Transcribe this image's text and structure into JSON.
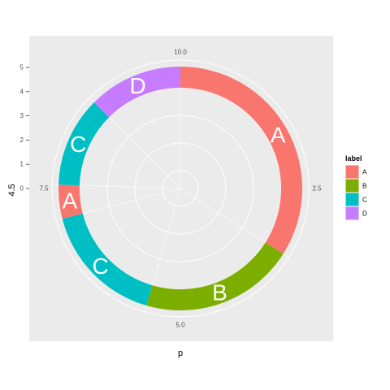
{
  "chart_data": {
    "type": "pie",
    "coord": "polar (ring / donut)",
    "xlabel": "p",
    "ylabel": "4.5",
    "y_ticks": [
      "0",
      "1",
      "2",
      "3",
      "4",
      "5"
    ],
    "theta_ticks": [
      {
        "value": 0,
        "label": "10.0"
      },
      {
        "value": 2.5,
        "label": "2.5"
      },
      {
        "value": 5.0,
        "label": "5.0"
      },
      {
        "value": 7.5,
        "label": "7.5"
      }
    ],
    "theta_range": [
      0,
      10
    ],
    "segments": [
      {
        "label": "A",
        "start": 0.0,
        "end": 3.4
      },
      {
        "label": "B",
        "start": 3.4,
        "end": 5.45
      },
      {
        "label": "C",
        "start": 5.45,
        "end": 7.1
      },
      {
        "label": "A",
        "start": 7.1,
        "end": 7.55
      },
      {
        "label": "C",
        "start": 7.55,
        "end": 8.75
      },
      {
        "label": "D",
        "start": 8.75,
        "end": 10.0
      }
    ],
    "legend": {
      "title": "label",
      "placement": "right",
      "items": [
        {
          "label": "A",
          "color": "#F8766D"
        },
        {
          "label": "B",
          "color": "#7CAE00"
        },
        {
          "label": "C",
          "color": "#00BFC4"
        },
        {
          "label": "D",
          "color": "#C77CFF"
        }
      ]
    },
    "background": "#EBEBEB",
    "gridline_color": "#FFFFFF"
  }
}
